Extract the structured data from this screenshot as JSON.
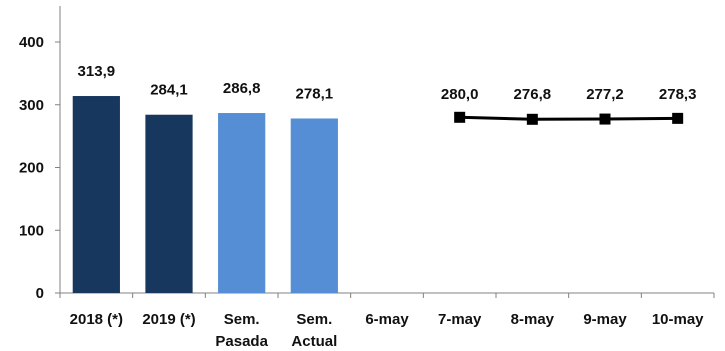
{
  "chart_data": {
    "type": "bar",
    "categories": [
      "2018 (*)",
      "2019 (*)",
      "Sem. Pasada",
      "Sem. Actual",
      "6-may",
      "7-may",
      "8-may",
      "9-may",
      "10-may"
    ],
    "category_labels": [
      [
        "2018 (*)"
      ],
      [
        "2019 (*)"
      ],
      [
        "Sem.",
        "Pasada"
      ],
      [
        "Sem.",
        "Actual"
      ],
      [
        "6-may"
      ],
      [
        "7-may"
      ],
      [
        "8-may"
      ],
      [
        "9-may"
      ],
      [
        "10-may"
      ]
    ],
    "ylim": [
      0,
      400
    ],
    "yticks": [
      0,
      100,
      200,
      300,
      400
    ],
    "grid": false,
    "legend": "none",
    "series": [
      {
        "kind": "bar",
        "values": [
          313.9,
          284.1,
          286.8,
          278.1,
          null,
          null,
          null,
          null,
          null
        ],
        "labels": [
          "313,9",
          "284,1",
          "286,8",
          "278,1",
          "",
          "",
          "",
          "",
          ""
        ],
        "colors": [
          "#17375e",
          "#17375e",
          "#558ed5",
          "#558ed5",
          "",
          "",
          "",
          "",
          ""
        ]
      },
      {
        "kind": "line",
        "values": [
          null,
          null,
          null,
          null,
          null,
          280.0,
          276.8,
          277.2,
          278.3
        ],
        "labels": [
          "",
          "",
          "",
          "",
          "",
          "280,0",
          "276,8",
          "277,2",
          "278,3"
        ],
        "color": "#000000",
        "marker": "square"
      }
    ],
    "title": "",
    "xlabel": "",
    "ylabel": ""
  }
}
